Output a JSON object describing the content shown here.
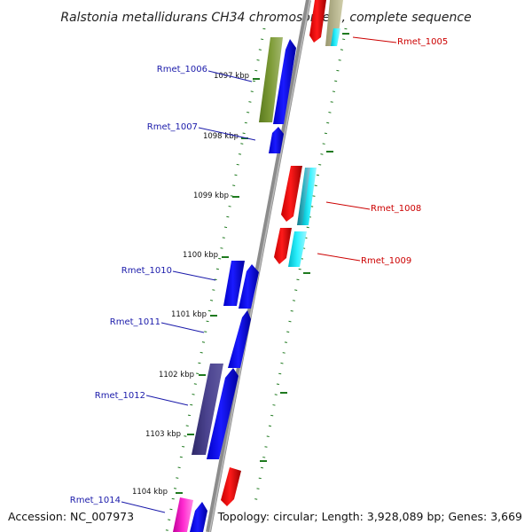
{
  "title": "Ralstonia metallidurans CH34 chromosome 1, complete sequence",
  "footer": {
    "accession": "Accession: NC_007973",
    "topology": "Topology: circular; Length: 3,928,089 bp; Genes: 3,669"
  },
  "colors": {
    "backbone": "#8c8c8c",
    "tick": "#1f7a1f",
    "forward_label": "#1a1aaa",
    "reverse_label": "#cc0000"
  },
  "ruler_labels": [
    "1097 kbp",
    "1098 kbp",
    "1099 kbp",
    "1100 kbp",
    "1101 kbp",
    "1102 kbp",
    "1103 kbp",
    "1104 kbp"
  ],
  "genes": [
    {
      "label": "Rmet_1005",
      "strand": "reverse"
    },
    {
      "label": "Rmet_1006",
      "strand": "forward"
    },
    {
      "label": "Rmet_1007",
      "strand": "forward"
    },
    {
      "label": "Rmet_1008",
      "strand": "reverse"
    },
    {
      "label": "Rmet_1009",
      "strand": "reverse"
    },
    {
      "label": "Rmet_1010",
      "strand": "forward"
    },
    {
      "label": "Rmet_1011",
      "strand": "forward"
    },
    {
      "label": "Rmet_1012",
      "strand": "forward"
    },
    {
      "label": "Rmet_1014",
      "strand": "forward"
    }
  ]
}
